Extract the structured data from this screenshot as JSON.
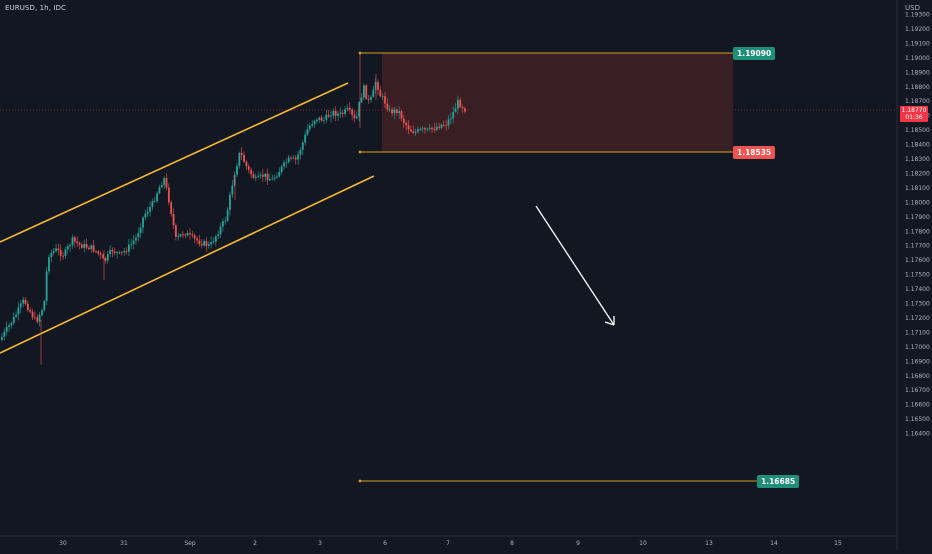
{
  "chart": {
    "symbol": "EURUSD, 1h, IDC",
    "currency": "USD",
    "last_price": "1.18770",
    "countdown": "01:36"
  },
  "y_axis": {
    "ticks": [
      "1.19300",
      "1.19200",
      "1.19100",
      "1.19000",
      "1.18900",
      "1.18800",
      "1.18700",
      "1.18600",
      "1.18500",
      "1.18400",
      "1.18300",
      "1.18200",
      "1.18100",
      "1.18000",
      "1.17900",
      "1.17800",
      "1.17700",
      "1.17600",
      "1.17500",
      "1.17400",
      "1.17300",
      "1.17200",
      "1.17100",
      "1.17000",
      "1.16900",
      "1.16800",
      "1.16700",
      "1.16600",
      "1.16500",
      "1.16400"
    ]
  },
  "x_axis": {
    "ticks": [
      "30",
      "31",
      "Sep",
      "2",
      "3",
      "6",
      "7",
      "8",
      "9",
      "10",
      "13",
      "14",
      "15"
    ]
  },
  "levels": {
    "top": "1.19090",
    "mid": "1.18535",
    "bottom": "1.16685"
  },
  "colors": {
    "background": "#131722",
    "up": "#26a69a",
    "down": "#ef5350",
    "channel": "#f5b932",
    "level_line": "#d4a22a",
    "zone": "#3b1f24",
    "badge_green": "#1f8f7a",
    "badge_red": "#f05350"
  }
}
